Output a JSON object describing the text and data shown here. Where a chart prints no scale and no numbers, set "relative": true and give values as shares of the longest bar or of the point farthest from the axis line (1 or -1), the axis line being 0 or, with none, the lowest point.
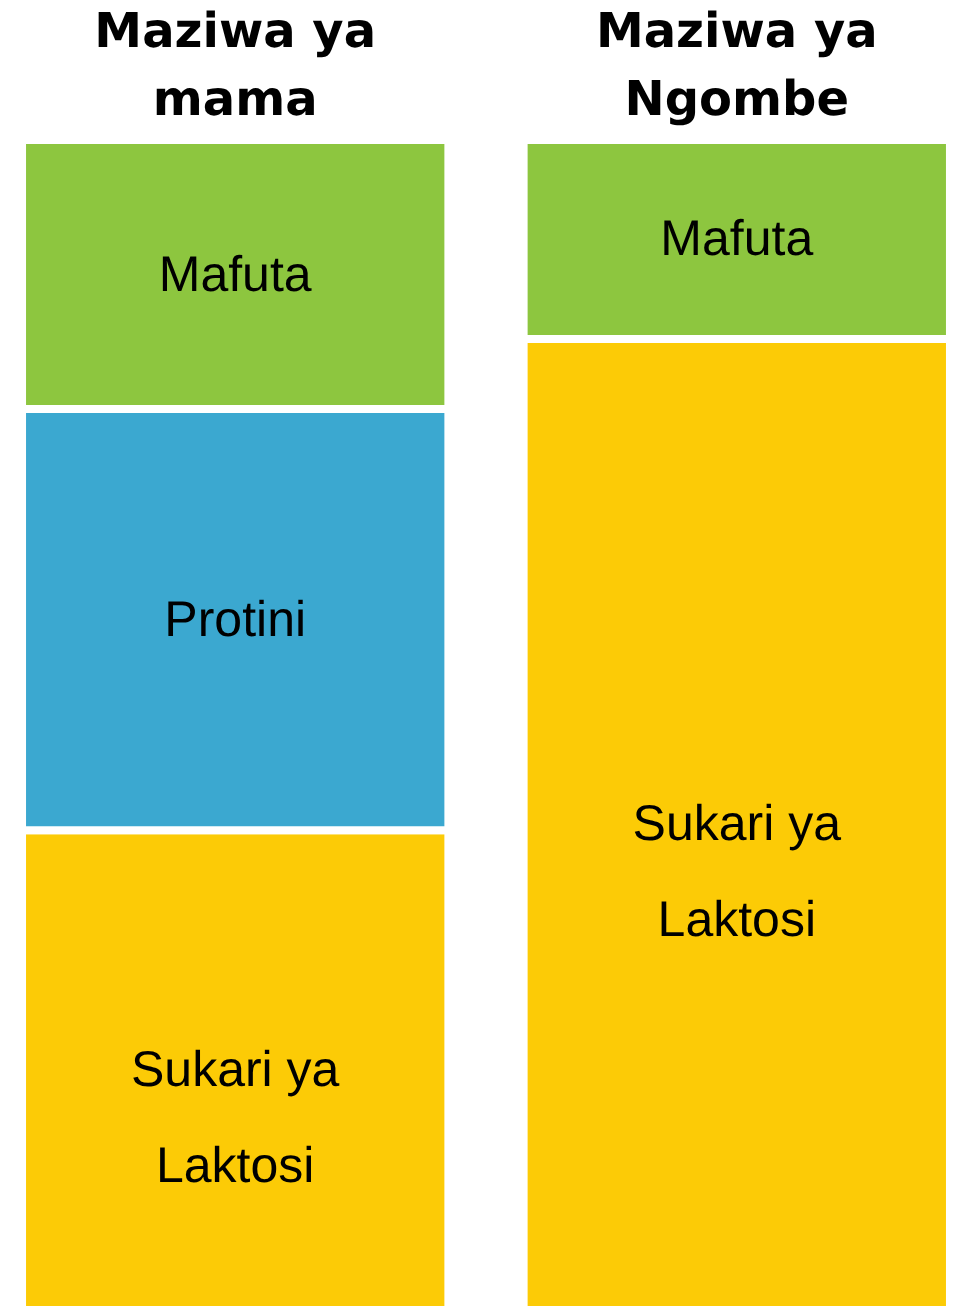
{
  "chart_data": {
    "type": "bar",
    "relative": true,
    "stacked": true,
    "legend": false,
    "grid": false,
    "categories": [
      "Maziwa ya mama",
      "Maziwa ya Ngombe"
    ],
    "series": [
      {
        "name": "Sukari ya Laktosi",
        "color": "#fccb06",
        "values": [
          0.41,
          0.83
        ]
      },
      {
        "name": "Protini",
        "color": "#3ba8d0",
        "values": [
          0.36,
          null
        ]
      },
      {
        "name": "Mafuta",
        "color": "#8dc63f",
        "values": [
          0.23,
          0.17
        ]
      }
    ]
  }
}
